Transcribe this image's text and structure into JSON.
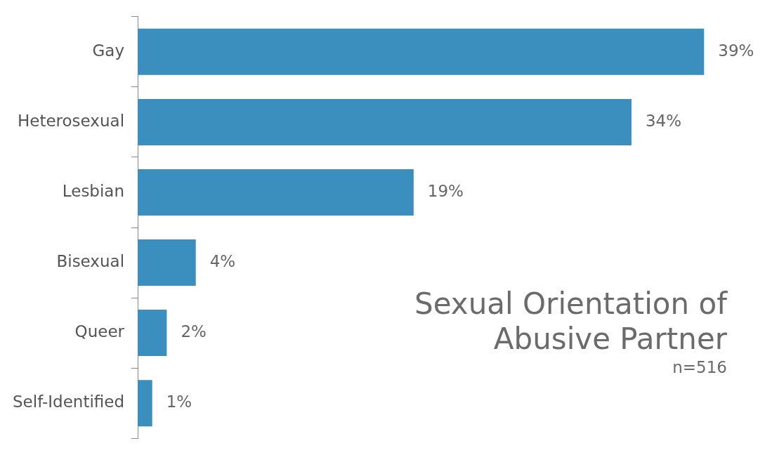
{
  "chart_data": {
    "type": "bar",
    "orientation": "horizontal",
    "title": "Sexual Orientation of Abusive Partner",
    "subtitle": "n=516",
    "categories": [
      "Gay",
      "Heterosexual",
      "Lesbian",
      "Bisexual",
      "Queer",
      "Self-Identified"
    ],
    "values": [
      39,
      34,
      19,
      4,
      2,
      1
    ],
    "color": "#3a8fbf",
    "value_labels": [
      "39%",
      "34%",
      "19%",
      "4%",
      "2%",
      "1%"
    ]
  }
}
